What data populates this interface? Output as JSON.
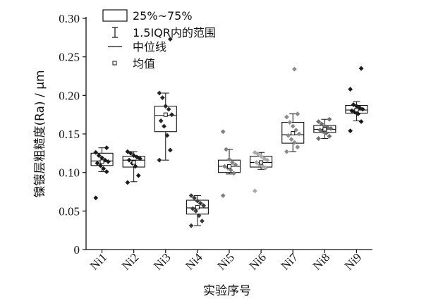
{
  "chart_data": {
    "type": "box",
    "xlabel": "实验序号",
    "ylabel": "镍镀层粗糙度(Ra) / μm",
    "ylim": [
      0,
      0.3
    ],
    "yticks": [
      0,
      0.05,
      0.1,
      0.15,
      0.2,
      0.25,
      0.3
    ],
    "ytick_labels": [
      "0",
      "0.05",
      "0.10",
      "0.15",
      "0.20",
      "0.25",
      "0.30"
    ],
    "categories": [
      "Ni1",
      "Ni2",
      "Ni3",
      "Ni4",
      "Ni5",
      "Ni6",
      "Ni7",
      "Ni8",
      "Ni9"
    ],
    "legend": {
      "placement": "top-left",
      "items": [
        {
          "symbol": "box",
          "label": "25%~75%"
        },
        {
          "symbol": "whisker",
          "label": "1.5IQR内的范围"
        },
        {
          "symbol": "line",
          "label": "中位线"
        },
        {
          "symbol": "square",
          "label": "均值"
        }
      ]
    },
    "series": [
      {
        "category": "Ni1",
        "color": "#1a1a1a",
        "q1": 0.109,
        "median": 0.115,
        "q3": 0.125,
        "mean": 0.114,
        "whisker_low": 0.101,
        "whisker_high": 0.132,
        "points": [
          0.067,
          0.101,
          0.105,
          0.109,
          0.112,
          0.114,
          0.116,
          0.119,
          0.122,
          0.126,
          0.132
        ]
      },
      {
        "category": "Ni2",
        "color": "#1a1a1a",
        "q1": 0.107,
        "median": 0.116,
        "q3": 0.121,
        "mean": 0.113,
        "whisker_low": 0.088,
        "whisker_high": 0.127,
        "points": [
          0.087,
          0.096,
          0.108,
          0.112,
          0.116,
          0.118,
          0.12,
          0.122,
          0.125,
          0.127
        ]
      },
      {
        "category": "Ni3",
        "color": "#262626",
        "q1": 0.153,
        "median": 0.174,
        "q3": 0.186,
        "mean": 0.175,
        "whisker_low": 0.116,
        "whisker_high": 0.203,
        "points": [
          0.116,
          0.129,
          0.148,
          0.16,
          0.167,
          0.175,
          0.182,
          0.186,
          0.197,
          0.203,
          0.273
        ]
      },
      {
        "category": "Ni4",
        "color": "#3a3a3a",
        "q1": 0.046,
        "median": 0.054,
        "q3": 0.064,
        "mean": 0.055,
        "whisker_low": 0.031,
        "whisker_high": 0.07,
        "points": [
          0.031,
          0.037,
          0.044,
          0.05,
          0.053,
          0.057,
          0.06,
          0.063,
          0.067,
          0.07
        ]
      },
      {
        "category": "Ni5",
        "color": "#808080",
        "q1": 0.1,
        "median": 0.108,
        "q3": 0.116,
        "mean": 0.108,
        "whisker_low": 0.098,
        "whisker_high": 0.13,
        "points": [
          0.07,
          0.099,
          0.103,
          0.106,
          0.108,
          0.11,
          0.113,
          0.117,
          0.13,
          0.153
        ]
      },
      {
        "category": "Ni6",
        "color": "#a8a8a8",
        "q1": 0.107,
        "median": 0.113,
        "q3": 0.121,
        "mean": 0.113,
        "whisker_low": 0.104,
        "whisker_high": 0.126,
        "points": [
          0.076,
          0.106,
          0.108,
          0.11,
          0.113,
          0.116,
          0.118,
          0.121,
          0.124,
          0.126
        ]
      },
      {
        "category": "Ni7",
        "color": "#8c8c8c",
        "q1": 0.138,
        "median": 0.149,
        "q3": 0.165,
        "mean": 0.151,
        "whisker_low": 0.127,
        "whisker_high": 0.176,
        "points": [
          0.127,
          0.133,
          0.139,
          0.143,
          0.148,
          0.15,
          0.155,
          0.16,
          0.165,
          0.172,
          0.176,
          0.234
        ]
      },
      {
        "category": "Ni8",
        "color": "#6e6e6e",
        "q1": 0.152,
        "median": 0.156,
        "q3": 0.161,
        "mean": 0.156,
        "whisker_low": 0.144,
        "whisker_high": 0.169,
        "points": [
          0.144,
          0.147,
          0.151,
          0.153,
          0.155,
          0.157,
          0.158,
          0.16,
          0.163,
          0.166,
          0.169
        ]
      },
      {
        "category": "Ni9",
        "color": "#1a1a1a",
        "q1": 0.177,
        "median": 0.181,
        "q3": 0.187,
        "mean": 0.181,
        "whisker_low": 0.167,
        "whisker_high": 0.192,
        "points": [
          0.154,
          0.166,
          0.176,
          0.178,
          0.18,
          0.182,
          0.184,
          0.186,
          0.188,
          0.208,
          0.235
        ]
      }
    ]
  }
}
